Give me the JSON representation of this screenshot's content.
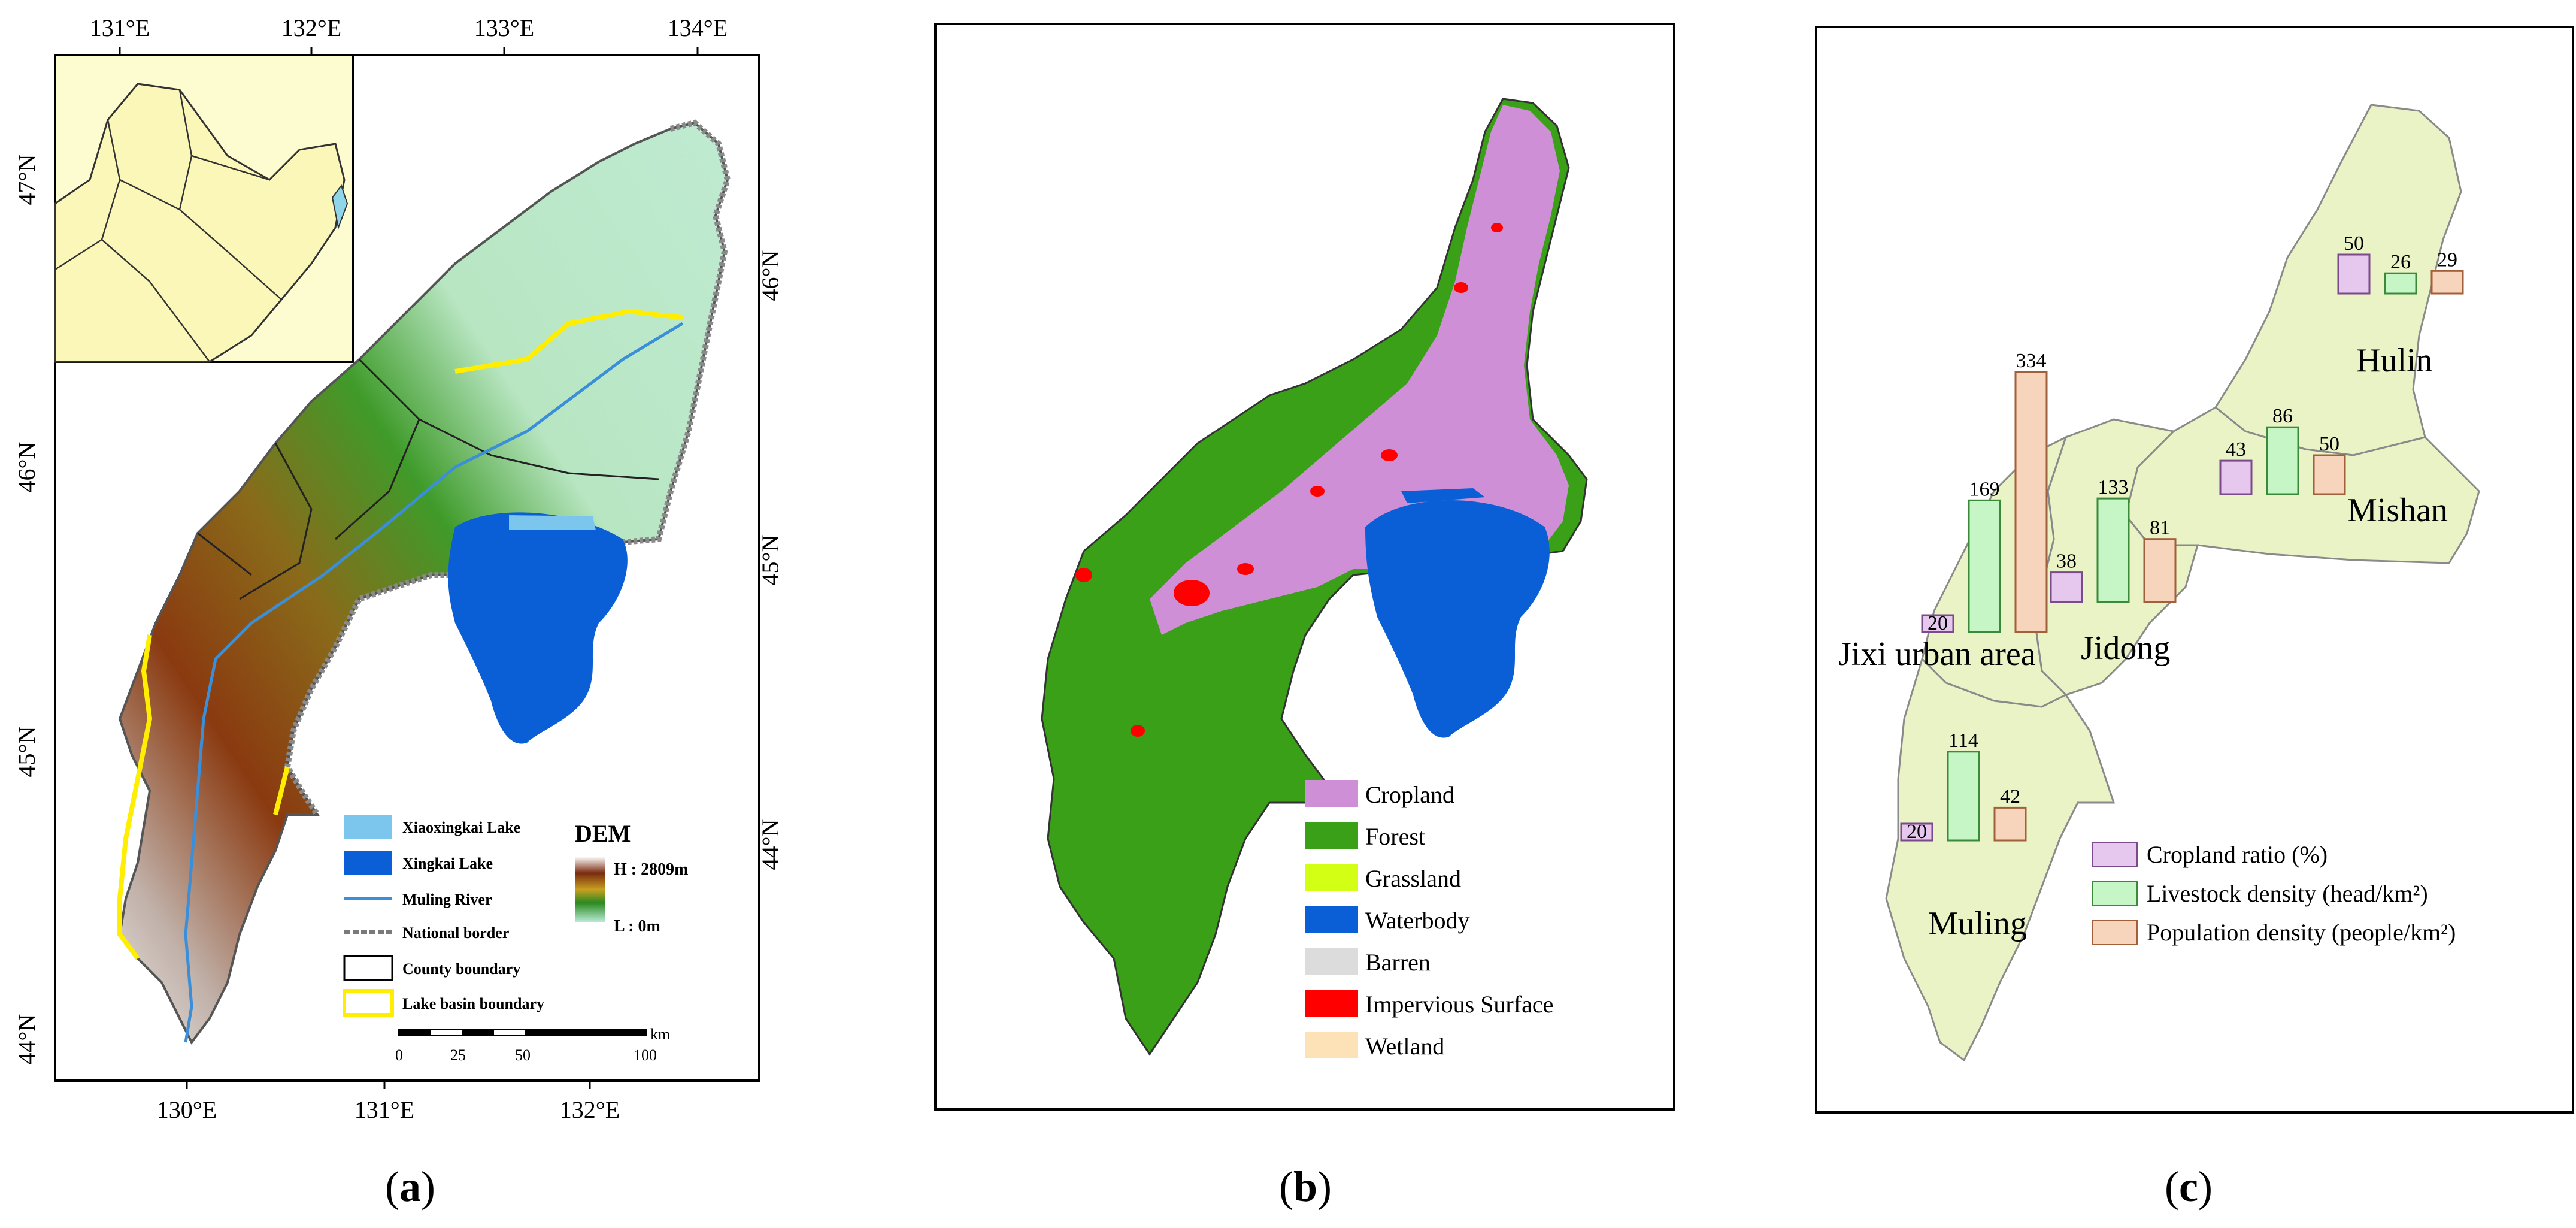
{
  "panel_a": {
    "caption": "a",
    "top_ticks": [
      "131°E",
      "132°E",
      "133°E",
      "134°E"
    ],
    "bottom_ticks": [
      "130°E",
      "131°E",
      "132°E"
    ],
    "left_ticks": [
      "47°N",
      "46°N",
      "45°N",
      "44°N"
    ],
    "right_ticks": [
      "46°N",
      "45°N",
      "44°N"
    ],
    "legend": [
      {
        "label": "Xiaoxingkai Lake",
        "color": "#7cc6ee"
      },
      {
        "label": "Xingkai Lake",
        "color": "#0a5fd6"
      },
      {
        "label": "Muling River",
        "color": "#3a8fd8"
      },
      {
        "label": "National border",
        "color": "#7a7a7a"
      },
      {
        "label": "County boundary",
        "color": "#000000"
      },
      {
        "label": "Lake basin boundary",
        "color": "#ffee00"
      }
    ],
    "dem": {
      "title": "DEM",
      "high": "H : 2809m",
      "low": "L : 0m"
    },
    "scale": {
      "unit": "km",
      "labels": [
        "0",
        "25",
        "50",
        "100"
      ]
    }
  },
  "panel_b": {
    "caption": "b",
    "legend": [
      {
        "label": "Cropland",
        "color": "#cf8fd6"
      },
      {
        "label": "Forest",
        "color": "#3aa018"
      },
      {
        "label": "Grassland",
        "color": "#d2ff14"
      },
      {
        "label": "Waterbody",
        "color": "#0a5fd6"
      },
      {
        "label": "Barren",
        "color": "#dcdcdc"
      },
      {
        "label": "Impervious Surface",
        "color": "#ff0000"
      },
      {
        "label": "Wetland",
        "color": "#fde2b8"
      }
    ]
  },
  "panel_c": {
    "caption": "c",
    "counties": [
      {
        "name": "Hulin",
        "cropland": 50,
        "livestock": 26,
        "population": 29
      },
      {
        "name": "Mishan",
        "cropland": 43,
        "livestock": 86,
        "population": 50
      },
      {
        "name": "Jidong",
        "cropland": 38,
        "livestock": 133,
        "population": 81
      },
      {
        "name": "Jixi urban area",
        "cropland": 20,
        "livestock": 169,
        "population": 334
      },
      {
        "name": "Muling",
        "cropland": 20,
        "livestock": 114,
        "population": 42
      }
    ],
    "legend": [
      {
        "label": "Cropland ratio (%)",
        "color": "#e6c8ef"
      },
      {
        "label": "Livestock density (head/km²)",
        "color": "#c6f5c6"
      },
      {
        "label": "Population density (people/km²)",
        "color": "#f7d5bc"
      }
    ]
  }
}
